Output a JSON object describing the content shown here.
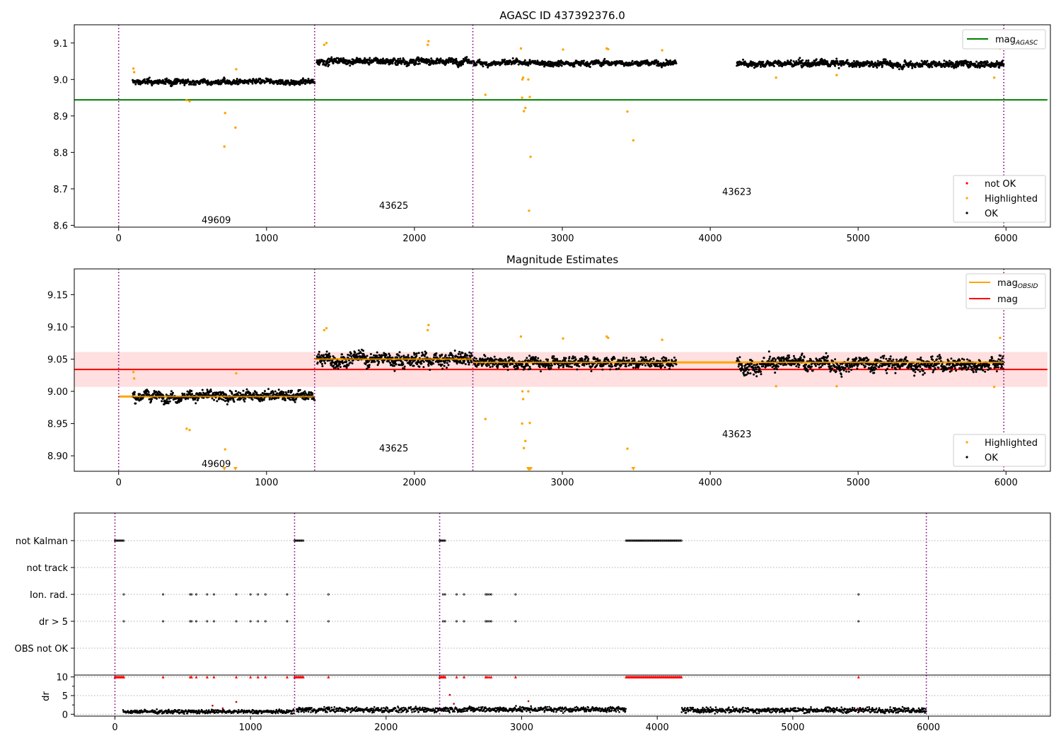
{
  "chart_data": [
    {
      "type": "scatter",
      "title": "AGASC ID 437392376.0",
      "xlim": [
        -300,
        6300
      ],
      "ylim": [
        8.595,
        9.15
      ],
      "xticks": [
        0,
        1000,
        2000,
        3000,
        4000,
        5000,
        6000
      ],
      "yticks": [
        8.6,
        8.7,
        8.8,
        8.9,
        9.0,
        9.1
      ],
      "lines": [
        {
          "name": "mag_AGASC",
          "y": 8.944,
          "x": [
            -300,
            6280
          ],
          "color": "#008000"
        }
      ],
      "segments": [
        {
          "x0": 95,
          "x1": 1325,
          "mean": 8.993,
          "amp": 0.008
        },
        {
          "x0": 1340,
          "x1": 2390,
          "mean": 9.05,
          "amp": 0.01
        },
        {
          "x0": 2400,
          "x1": 3770,
          "mean": 9.045,
          "amp": 0.008
        },
        {
          "x0": 4180,
          "x1": 5985,
          "mean": 9.043,
          "amp": 0.01
        }
      ],
      "highlighted": [
        [
          100,
          9.03
        ],
        [
          105,
          9.02
        ],
        [
          460,
          8.943
        ],
        [
          480,
          8.94
        ],
        [
          720,
          8.908
        ],
        [
          715,
          8.816
        ],
        [
          790,
          8.868
        ],
        [
          795,
          9.028
        ],
        [
          1390,
          9.095
        ],
        [
          1405,
          9.1
        ],
        [
          2095,
          9.105
        ],
        [
          2090,
          9.095
        ],
        [
          2480,
          8.958
        ],
        [
          2720,
          9.085
        ],
        [
          2730,
          9.0
        ],
        [
          2735,
          9.005
        ],
        [
          2728,
          8.95
        ],
        [
          2740,
          8.913
        ],
        [
          2750,
          8.922
        ],
        [
          2770,
          9.0
        ],
        [
          2780,
          8.952
        ],
        [
          2785,
          8.788
        ],
        [
          2775,
          8.64
        ],
        [
          3005,
          9.082
        ],
        [
          3300,
          9.085
        ],
        [
          3310,
          9.083
        ],
        [
          3440,
          8.912
        ],
        [
          3480,
          8.833
        ],
        [
          3675,
          9.08
        ],
        [
          4445,
          9.005
        ],
        [
          4855,
          9.012
        ],
        [
          5920,
          9.005
        ],
        [
          5960,
          9.085
        ]
      ],
      "vlines": [
        0,
        1325,
        2395,
        5985
      ],
      "obsid_labels": [
        {
          "text": "49609",
          "x": 660,
          "y": 8.615
        },
        {
          "text": "43625",
          "x": 1860,
          "y": 8.655
        },
        {
          "text": "43623",
          "x": 4180,
          "y": 8.693
        }
      ],
      "legend_top": [
        {
          "label": "mag",
          "sub": "AGASC",
          "color": "#008000"
        }
      ],
      "legend_bottom": [
        {
          "label": "not OK",
          "color": "#ff0000"
        },
        {
          "label": "Highlighted",
          "color": "#ffa500"
        },
        {
          "label": "OK",
          "color": "#000000"
        }
      ],
      "legend_top_placement": "top-right",
      "legend_bottom_placement": "bottom-right"
    },
    {
      "type": "scatter",
      "title": "Magnitude Estimates",
      "xlim": [
        -300,
        6300
      ],
      "ylim": [
        8.876,
        9.19
      ],
      "xticks": [
        0,
        1000,
        2000,
        3000,
        4000,
        5000,
        6000
      ],
      "yticks": [
        8.9,
        8.95,
        9.0,
        9.05,
        9.1,
        9.15
      ],
      "mag": {
        "y": 9.034,
        "band": [
          9.007,
          9.061
        ],
        "x": [
          -300,
          6280
        ],
        "color": "#ff0000"
      },
      "mag_obsid": [
        {
          "x0": 0,
          "x1": 1325,
          "y": 8.992
        },
        {
          "x0": 1325,
          "x1": 2395,
          "y": 9.05
        },
        {
          "x0": 2395,
          "x1": 5985,
          "y": 9.045
        }
      ],
      "segments": [
        {
          "x0": 95,
          "x1": 1325,
          "mean": 8.993,
          "amp": 0.009
        },
        {
          "x0": 1340,
          "x1": 2390,
          "mean": 9.05,
          "amp": 0.012
        },
        {
          "x0": 2400,
          "x1": 3770,
          "mean": 9.045,
          "amp": 0.01
        },
        {
          "x0": 4180,
          "x1": 5985,
          "mean": 9.043,
          "amp": 0.012
        }
      ],
      "highlighted": [
        [
          100,
          9.03
        ],
        [
          105,
          9.02
        ],
        [
          460,
          8.942
        ],
        [
          480,
          8.94
        ],
        [
          720,
          8.91
        ],
        [
          795,
          9.028
        ],
        [
          1390,
          9.095
        ],
        [
          1405,
          9.098
        ],
        [
          2095,
          9.103
        ],
        [
          2090,
          9.095
        ],
        [
          2480,
          8.957
        ],
        [
          2720,
          9.085
        ],
        [
          2730,
          9.0
        ],
        [
          2735,
          8.988
        ],
        [
          2728,
          8.95
        ],
        [
          2740,
          8.912
        ],
        [
          2750,
          8.923
        ],
        [
          2770,
          9.0
        ],
        [
          2780,
          8.951
        ],
        [
          3005,
          9.082
        ],
        [
          3300,
          9.085
        ],
        [
          3310,
          9.083
        ],
        [
          3440,
          8.911
        ],
        [
          3675,
          9.08
        ],
        [
          4445,
          9.008
        ],
        [
          4855,
          9.008
        ],
        [
          5920,
          9.007
        ],
        [
          5960,
          9.083
        ]
      ],
      "clipped_low": [
        715,
        790,
        2770,
        2775,
        2780,
        2785,
        3480
      ],
      "vlines": [
        0,
        1325,
        2395,
        5985
      ],
      "obsid_labels": [
        {
          "text": "49609",
          "x": 660,
          "y": 8.888
        },
        {
          "text": "43625",
          "x": 1860,
          "y": 8.912
        },
        {
          "text": "43623",
          "x": 4180,
          "y": 8.934
        }
      ],
      "legend_top": [
        {
          "label": "mag",
          "sub": "OBSID",
          "color": "#ffa500"
        },
        {
          "label": "mag",
          "sub": "",
          "color": "#ff0000"
        }
      ],
      "legend_bottom": [
        {
          "label": "Highlighted",
          "color": "#ffa500"
        },
        {
          "label": "OK",
          "color": "#000000"
        }
      ],
      "legend_top_placement": "top-right",
      "legend_bottom_placement": "bottom-right"
    },
    {
      "type": "scatter",
      "title": "",
      "xlim": [
        -300,
        6900
      ],
      "categories": [
        "not Kalman",
        "not track",
        "Ion. rad.",
        "dr > 5",
        "OBS not OK"
      ],
      "grid": true,
      "flags": {
        "not Kalman": [
          [
            0,
            70
          ],
          [
            1325,
            1390
          ],
          [
            2395,
            2440
          ],
          [
            3770,
            4180
          ]
        ],
        "not track": [],
        "Ion. rad.": [
          65,
          355,
          555,
          565,
          600,
          680,
          730,
          895,
          1000,
          1055,
          1110,
          1270,
          1575,
          2420,
          2435,
          2520,
          2575,
          2735,
          2745,
          2760,
          2775,
          2955,
          5485
        ],
        "dr > 5": [
          65,
          355,
          555,
          565,
          600,
          680,
          730,
          895,
          1000,
          1055,
          1110,
          1270,
          1575,
          2420,
          2435,
          2520,
          2575,
          2735,
          2745,
          2760,
          2775,
          2955,
          5485
        ],
        "OBS not OK": []
      },
      "vlines": [
        0,
        1325,
        2395,
        5985
      ]
    },
    {
      "type": "scatter",
      "title": "",
      "ylabel": "dr",
      "xlim": [
        -300,
        6900
      ],
      "ylim": [
        -0.5,
        10.5
      ],
      "xticks": [
        0,
        1000,
        2000,
        3000,
        4000,
        5000,
        6000
      ],
      "yticks": [
        0,
        5,
        10
      ],
      "grid": true,
      "segments": [
        {
          "x0": 60,
          "x1": 1325,
          "mean": 0.7,
          "amp": 0.35
        },
        {
          "x0": 1340,
          "x1": 2395,
          "mean": 1.2,
          "amp": 0.5
        },
        {
          "x0": 2400,
          "x1": 3770,
          "mean": 1.3,
          "amp": 0.5
        },
        {
          "x0": 4180,
          "x1": 5985,
          "mean": 1.1,
          "amp": 0.5
        }
      ],
      "outliers": [
        [
          720,
          2.3
        ],
        [
          795,
          1.6
        ],
        [
          895,
          3.3
        ],
        [
          2470,
          5.2
        ],
        [
          2500,
          2.8
        ],
        [
          3050,
          3.5
        ],
        [
          5480,
          1.4
        ]
      ],
      "red_at_10": [
        [
          0,
          70
        ],
        [
          1325,
          1390
        ],
        [
          2395,
          2440
        ],
        [
          3770,
          4180
        ]
      ],
      "red_points": [
        65,
        355,
        555,
        565,
        600,
        680,
        730,
        895,
        1000,
        1055,
        1110,
        1270,
        1575,
        2420,
        2435,
        2520,
        2575,
        2735,
        2745,
        2760,
        2775,
        2955,
        5485
      ],
      "vlines": [
        0,
        1325,
        2395,
        5985
      ]
    }
  ]
}
